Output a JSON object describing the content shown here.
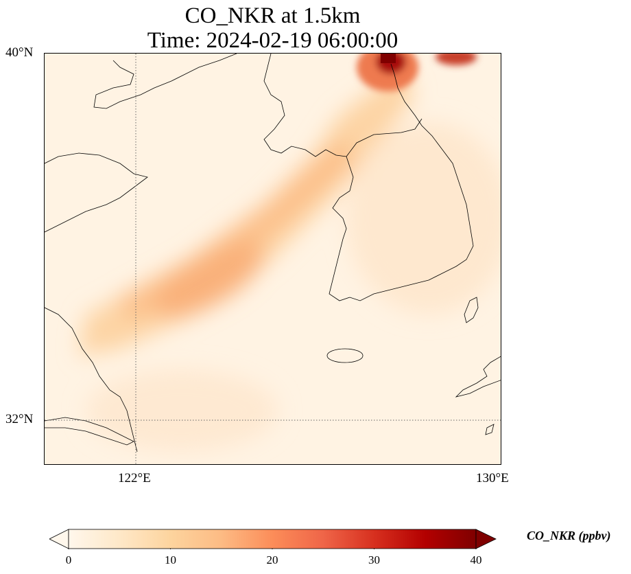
{
  "title": {
    "line1": "CO_NKR at 1.5km",
    "line2": "Time: 2024-02-19 06:00:00"
  },
  "map": {
    "lat_labels": [
      "40°N",
      "32°N"
    ],
    "lon_labels": [
      "122°E",
      "130°E"
    ],
    "gridline_style": "dotted"
  },
  "colorbar": {
    "label": "CO_NKR (ppbv)",
    "ticks": [
      "0",
      "10",
      "20",
      "30",
      "40"
    ],
    "colormap": "OrRd",
    "range": [
      0,
      40
    ],
    "extend": "both"
  },
  "colors": {
    "low": "#fff7ec",
    "mid": "#fdbb84",
    "high": "#7f0000"
  }
}
